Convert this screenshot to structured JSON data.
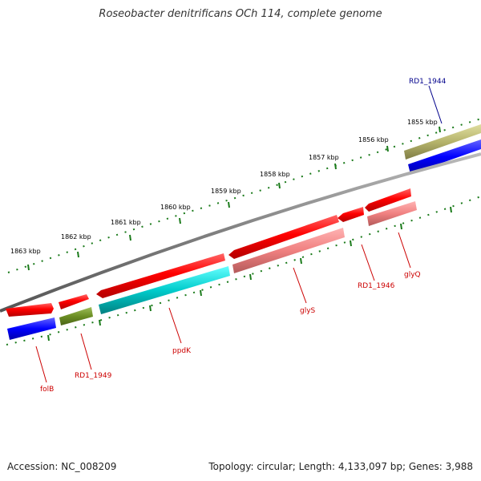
{
  "title": "Roseobacter denitrificans OCh 114, complete genome",
  "footer": {
    "accession": "Accession: NC_008209",
    "summary": "Topology: circular; Length: 4,133,097 bp; Genes: 3,988"
  },
  "ruler": {
    "labels": [
      "1855 kbp",
      "1856 kbp",
      "1857 kbp",
      "1858 kbp",
      "1859 kbp",
      "1860 kbp",
      "1861 kbp",
      "1862 kbp",
      "1863 kbp"
    ]
  },
  "genes": [
    {
      "id": "rd1-1944",
      "label": "RD1_1944",
      "label_color": "#00008b"
    },
    {
      "id": "glyq",
      "label": "glyQ",
      "label_color": "#cc0000"
    },
    {
      "id": "rd1-1946",
      "label": "RD1_1946",
      "label_color": "#cc0000"
    },
    {
      "id": "glys",
      "label": "glyS",
      "label_color": "#cc0000"
    },
    {
      "id": "ppdk",
      "label": "ppdK",
      "label_color": "#cc0000"
    },
    {
      "id": "rd1-1949",
      "label": "RD1_1949",
      "label_color": "#cc0000"
    },
    {
      "id": "folb",
      "label": "folB",
      "label_color": "#cc0000"
    }
  ],
  "colors": {
    "cds": "#ff0000",
    "rrna_pink": "#f08080",
    "cyan": "#00cccc",
    "olive": "#6b8e23",
    "khaki": "#b5b36b",
    "blue": "#0000ff",
    "ticks": "#1a7a1a",
    "backbone": "#808080"
  }
}
